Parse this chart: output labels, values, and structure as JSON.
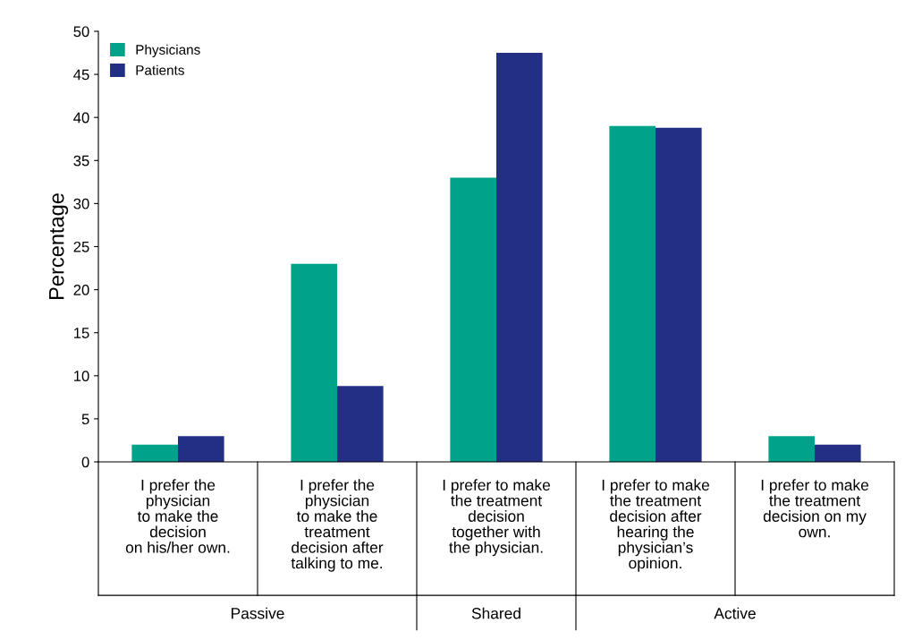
{
  "chart_data": {
    "type": "bar",
    "ylabel": "Percentage",
    "categories": [
      "I prefer the\nphysician\nto make the\ndecision\non his/her own.",
      "I prefer the\nphysician\nto make the\ntreatment\ndecision after\ntalking to me.",
      "I prefer to make\nthe treatment\ndecision\ntogether with\nthe physician.",
      "I prefer to make\nthe treatment\ndecision after\nhearing the\nphysician’s\nopinion.",
      "I prefer to make\nthe treatment\ndecision on my\nown."
    ],
    "series": [
      {
        "name": "Physicians",
        "color": "#00a389",
        "values": [
          2,
          23,
          33,
          39,
          3
        ]
      },
      {
        "name": "Patients",
        "color": "#232f85",
        "values": [
          3,
          8.8,
          47.5,
          38.8,
          2
        ]
      }
    ],
    "ylim": [
      0,
      50
    ],
    "yticks": [
      0,
      5,
      10,
      15,
      20,
      25,
      30,
      35,
      40,
      45,
      50
    ],
    "annotations": [
      "Passive",
      "Shared",
      "Active"
    ],
    "legend": "top left",
    "grid": false
  }
}
